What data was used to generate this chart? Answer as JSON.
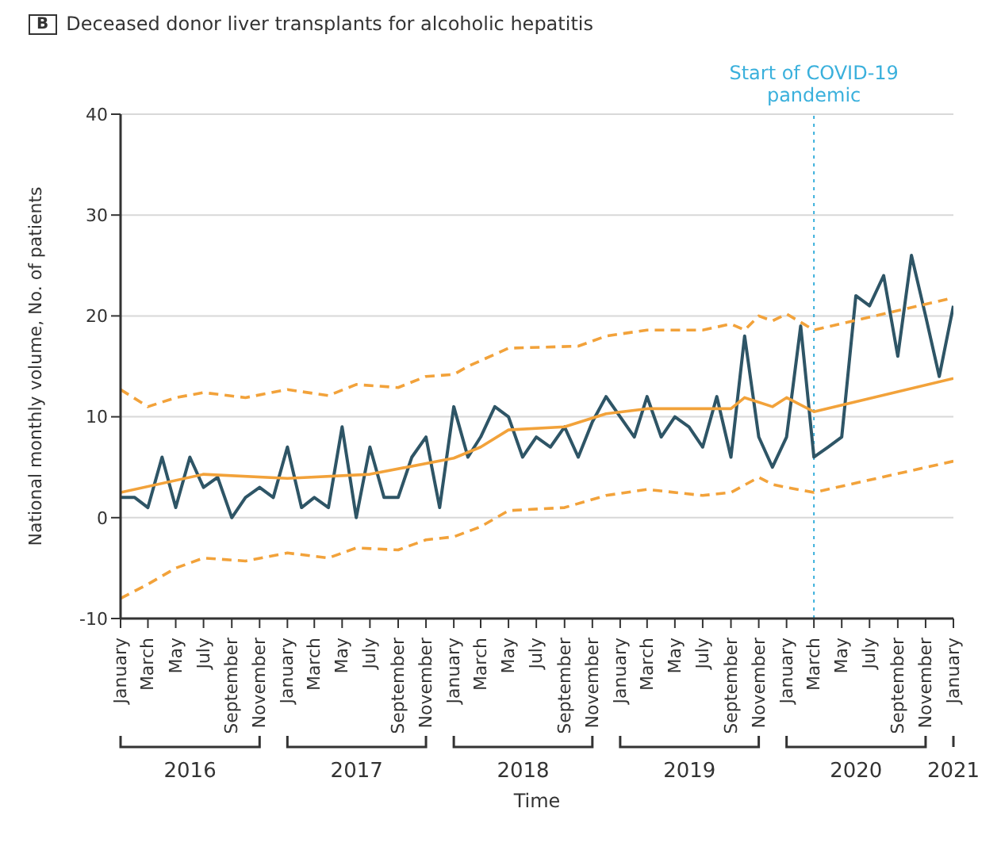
{
  "chart_data": {
    "type": "line",
    "title": "Deceased donor liver transplants for alcoholic hepatitis",
    "xlabel": "Time",
    "ylabel": "National monthly volume, No. of patients",
    "annotations": [
      "B",
      "2016",
      "2017",
      "2018",
      "2019",
      "2020",
      "2021"
    ],
    "x": [
      "2016-01",
      "2016-02",
      "2016-03",
      "2016-04",
      "2016-05",
      "2016-06",
      "2016-07",
      "2016-08",
      "2016-09",
      "2016-10",
      "2016-11",
      "2016-12",
      "2017-01",
      "2017-02",
      "2017-03",
      "2017-04",
      "2017-05",
      "2017-06",
      "2017-07",
      "2017-08",
      "2017-09",
      "2017-10",
      "2017-11",
      "2017-12",
      "2018-01",
      "2018-02",
      "2018-03",
      "2018-04",
      "2018-05",
      "2018-06",
      "2018-07",
      "2018-08",
      "2018-09",
      "2018-10",
      "2018-11",
      "2018-12",
      "2019-01",
      "2019-02",
      "2019-03",
      "2019-04",
      "2019-05",
      "2019-06",
      "2019-07",
      "2019-08",
      "2019-09",
      "2019-10",
      "2019-11",
      "2019-12",
      "2020-01",
      "2020-02",
      "2020-03",
      "2020-04",
      "2020-05",
      "2020-06",
      "2020-07",
      "2020-08",
      "2020-09",
      "2020-10",
      "2020-11",
      "2020-12",
      "2021-01"
    ],
    "series": [
      {
        "color": "#2e5566",
        "line_style": "solid",
        "values": [
          2,
          2,
          1,
          6,
          1,
          6,
          3,
          4,
          0,
          2,
          3,
          2,
          7,
          1,
          2,
          1,
          9,
          0,
          7,
          2,
          2,
          6,
          8,
          1,
          11,
          6,
          8,
          11,
          10,
          6,
          8,
          7,
          9,
          6,
          9.5,
          12,
          10,
          8,
          12,
          8,
          10,
          9,
          7,
          12,
          6,
          18,
          8,
          5,
          8,
          19,
          6,
          7,
          8,
          22,
          21,
          24,
          16,
          26,
          20,
          14,
          21
        ]
      },
      {
        "color": "#f2a23a",
        "line_style": "solid",
        "x": [
          "2016-01",
          "2016-07",
          "2017-01",
          "2017-07",
          "2018-01",
          "2018-03",
          "2018-05",
          "2018-09",
          "2018-12",
          "2019-03",
          "2019-09",
          "2019-10",
          "2019-12",
          "2020-01",
          "2020-03",
          "2021-01"
        ],
        "values": [
          2.5,
          4.3,
          3.9,
          4.3,
          5.9,
          7,
          8.7,
          9,
          10.3,
          10.8,
          10.8,
          11.9,
          11,
          11.9,
          10.5,
          13.8
        ]
      },
      {
        "color": "#f2a23a",
        "line_style": "dashed",
        "x": [
          "2016-01",
          "2016-03",
          "2016-05",
          "2016-07",
          "2016-10",
          "2017-01",
          "2017-04",
          "2017-06",
          "2017-09",
          "2017-11",
          "2018-01",
          "2018-02",
          "2018-05",
          "2018-10",
          "2018-12",
          "2019-03",
          "2019-07",
          "2019-09",
          "2019-10",
          "2019-11",
          "2019-12",
          "2020-01",
          "2020-03",
          "2021-01"
        ],
        "values": [
          12.7,
          11,
          11.9,
          12.4,
          11.9,
          12.7,
          12.1,
          13.2,
          12.9,
          14,
          14.2,
          15,
          16.8,
          17,
          18,
          18.6,
          18.6,
          19.2,
          18.6,
          20,
          19.5,
          20.2,
          18.6,
          21.8
        ]
      },
      {
        "color": "#f2a23a",
        "line_style": "dashed",
        "x": [
          "2016-01",
          "2016-03",
          "2016-05",
          "2016-07",
          "2016-10",
          "2017-01",
          "2017-04",
          "2017-06",
          "2017-09",
          "2017-11",
          "2018-01",
          "2018-03",
          "2018-05",
          "2018-09",
          "2018-12",
          "2019-03",
          "2019-07",
          "2019-09",
          "2019-11",
          "2019-12",
          "2020-01",
          "2020-03",
          "2021-01"
        ],
        "values": [
          -8,
          -6.6,
          -5,
          -4,
          -4.3,
          -3.5,
          -4,
          -3,
          -3.2,
          -2.2,
          -1.9,
          -0.9,
          0.7,
          1,
          2.2,
          2.8,
          2.2,
          2.5,
          4,
          3.3,
          3,
          2.5,
          5.6
        ]
      }
    ],
    "xlim": [
      "2016-01",
      "2021-01"
    ],
    "xticks": [
      {
        "value": "2016-01",
        "label": "January"
      },
      {
        "value": "2016-03",
        "label": "March"
      },
      {
        "value": "2016-05",
        "label": "May"
      },
      {
        "value": "2016-07",
        "label": "July"
      },
      {
        "value": "2016-09",
        "label": "September"
      },
      {
        "value": "2016-11",
        "label": "November"
      },
      {
        "value": "2017-01",
        "label": "January"
      },
      {
        "value": "2017-03",
        "label": "March"
      },
      {
        "value": "2017-05",
        "label": "May"
      },
      {
        "value": "2017-07",
        "label": "July"
      },
      {
        "value": "2017-09",
        "label": "September"
      },
      {
        "value": "2017-11",
        "label": "November"
      },
      {
        "value": "2018-01",
        "label": "January"
      },
      {
        "value": "2018-03",
        "label": "March"
      },
      {
        "value": "2018-05",
        "label": "May"
      },
      {
        "value": "2018-07",
        "label": "July"
      },
      {
        "value": "2018-09",
        "label": "September"
      },
      {
        "value": "2018-11",
        "label": "November"
      },
      {
        "value": "2019-01",
        "label": "January"
      },
      {
        "value": "2019-03",
        "label": "March"
      },
      {
        "value": "2019-05",
        "label": "May"
      },
      {
        "value": "2019-07",
        "label": "July"
      },
      {
        "value": "2019-09",
        "label": "September"
      },
      {
        "value": "2019-11",
        "label": "November"
      },
      {
        "value": "2020-01",
        "label": "January"
      },
      {
        "value": "2020-03",
        "label": "March"
      },
      {
        "value": "2020-05",
        "label": "May"
      },
      {
        "value": "2020-07",
        "label": "July"
      },
      {
        "value": "2020-09",
        "label": "September"
      },
      {
        "value": "2020-11",
        "label": "November"
      },
      {
        "value": "2021-01",
        "label": "January"
      }
    ],
    "ylim": [
      -10,
      40
    ],
    "yticks": [
      -10,
      0,
      10,
      20,
      30,
      40
    ],
    "grid": "y",
    "legend": false,
    "marker": "none",
    "ref_lines": [
      {
        "axis": "x",
        "value": "2020-03",
        "label": "Start of COVID-19 pandemic",
        "color": "#3ab0dc",
        "line_style": "dotted"
      }
    ]
  }
}
